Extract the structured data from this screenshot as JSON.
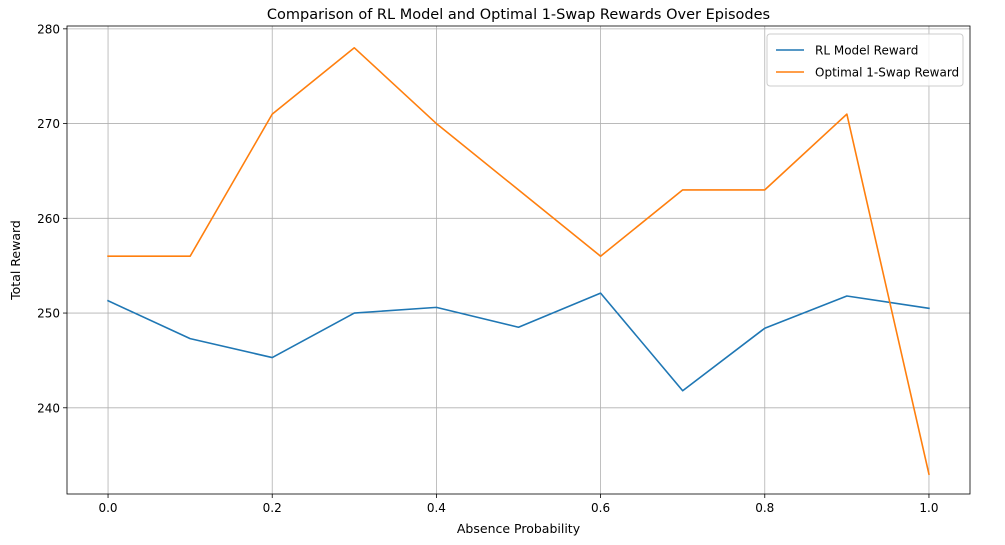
{
  "chart_data": {
    "type": "line",
    "title": "Comparison of RL Model and Optimal 1-Swap Rewards Over Episodes",
    "xlabel": "Absence Probability",
    "ylabel": "Total Reward",
    "x": [
      0.0,
      0.1,
      0.2,
      0.3,
      0.4,
      0.5,
      0.6,
      0.7,
      0.8,
      0.9,
      1.0
    ],
    "xlim": [
      -0.05,
      1.05
    ],
    "ylim": [
      230.9,
      280.3
    ],
    "xticks": [
      0.0,
      0.2,
      0.4,
      0.6,
      0.8,
      1.0
    ],
    "xtick_labels": [
      "0.0",
      "0.2",
      "0.4",
      "0.6",
      "0.8",
      "1.0"
    ],
    "yticks": [
      240,
      250,
      260,
      270,
      280
    ],
    "ytick_labels": [
      "240",
      "250",
      "260",
      "270",
      "280"
    ],
    "grid": true,
    "legend_position": "top-right",
    "series": [
      {
        "name": "RL Model Reward",
        "color": "#1f77b4",
        "values": [
          251.3,
          247.3,
          245.3,
          250.0,
          250.6,
          248.5,
          252.1,
          241.8,
          248.4,
          251.8,
          250.5
        ]
      },
      {
        "name": "Optimal 1-Swap Reward",
        "color": "#ff7f0e",
        "values": [
          256,
          256,
          271,
          278,
          270,
          263,
          256,
          263,
          263,
          271,
          233
        ]
      }
    ]
  }
}
